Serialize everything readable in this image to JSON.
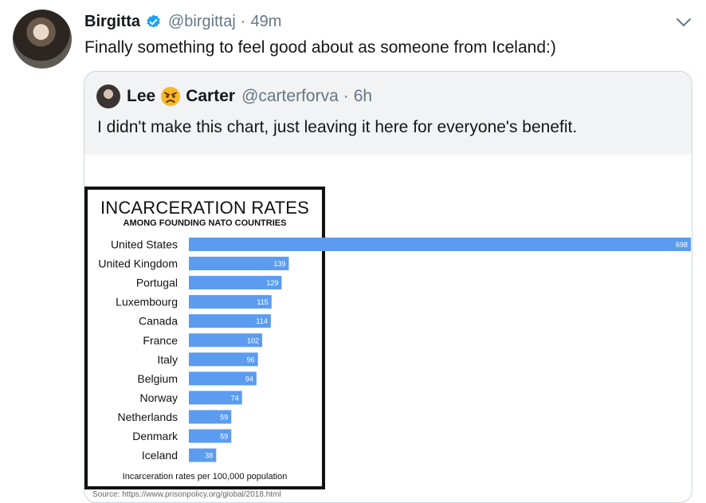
{
  "tweet": {
    "display_name": "Birgitta",
    "handle": "@birgittaj",
    "separator": "·",
    "time": "49m",
    "text": "Finally something to feel good about as someone from Iceland:)"
  },
  "quoted_tweet": {
    "name_first": "Lee",
    "name_last": "Carter",
    "emoji": "angry-face-emoji",
    "handle": "@carterforva",
    "separator": "·",
    "time": "6h",
    "text": "I didn't make this chart, just leaving it here for everyone's benefit."
  },
  "icons": {
    "verified": "verified-badge-icon",
    "menu": "chevron-down-icon"
  },
  "colors": {
    "bar": "#5b9cf0",
    "verified": "#1da1f2",
    "muted": "#657786"
  },
  "chart": {
    "title": "INCARCERATION RATES",
    "subtitle": "AMONG FOUNDING NATO COUNTRIES",
    "footer": "Incarceration rates per 100,000 population",
    "source": "Source: https://www.prisonpolicy.org/global/2018.html"
  },
  "chart_data": {
    "type": "bar",
    "orientation": "horizontal",
    "title": "INCARCERATION RATES",
    "subtitle": "AMONG FOUNDING NATO COUNTRIES",
    "xlabel": "Incarceration rates per 100,000 population",
    "categories": [
      "United States",
      "United Kingdom",
      "Portugal",
      "Luxembourg",
      "Canada",
      "France",
      "Italy",
      "Belgium",
      "Norway",
      "Netherlands",
      "Denmark",
      "Iceland"
    ],
    "values": [
      698,
      139,
      129,
      115,
      114,
      102,
      96,
      94,
      74,
      59,
      59,
      38
    ],
    "xlim": [
      0,
      698
    ],
    "grid": false
  }
}
